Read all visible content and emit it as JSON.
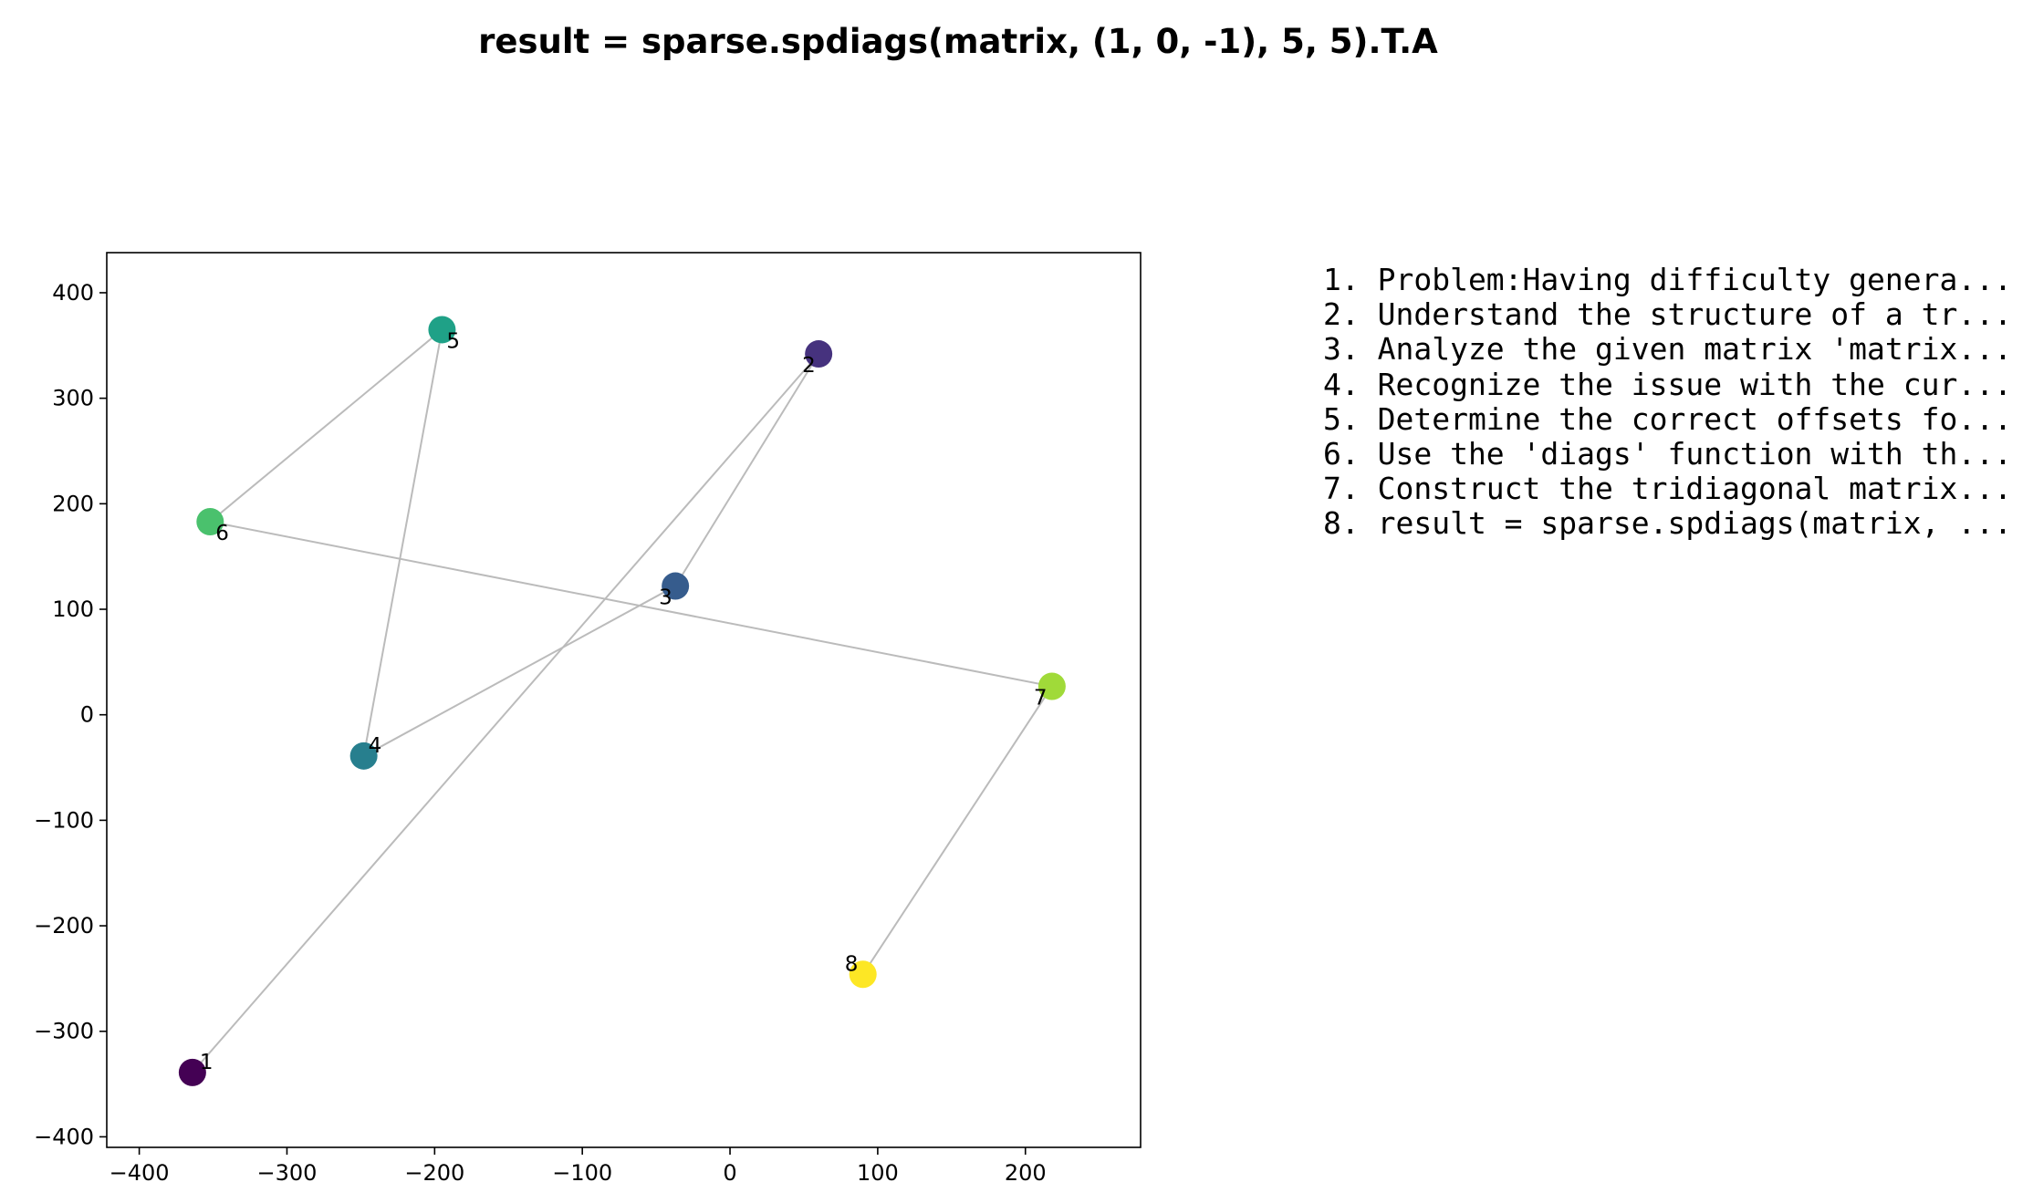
{
  "chart_data": {
    "type": "scatter",
    "title": "result = sparse.spdiags(matrix, (1, 0, -1), 5, 5).T.A",
    "xlabel": "",
    "ylabel": "",
    "xlim": [
      -422,
      278
    ],
    "ylim": [
      -410,
      438
    ],
    "xticks": [
      -400,
      -300,
      -200,
      -100,
      0,
      100,
      200
    ],
    "yticks": [
      -400,
      -300,
      -200,
      -100,
      0,
      100,
      200,
      300,
      400
    ],
    "xtick_labels": [
      "−400",
      "−300",
      "−200",
      "−100",
      "0",
      "100",
      "200"
    ],
    "ytick_labels": [
      "−400",
      "−300",
      "−200",
      "−100",
      "0",
      "100",
      "200",
      "300",
      "400"
    ],
    "grid": false,
    "points": [
      {
        "label": "1",
        "x": -364,
        "y": -339,
        "color": "#440154"
      },
      {
        "label": "2",
        "x": 60,
        "y": 342,
        "color": "#46327e"
      },
      {
        "label": "3",
        "x": -37,
        "y": 122,
        "color": "#365c8d"
      },
      {
        "label": "4",
        "x": -248,
        "y": -39,
        "color": "#277f8e"
      },
      {
        "label": "5",
        "x": -195,
        "y": 365,
        "color": "#1fa187"
      },
      {
        "label": "6",
        "x": -352,
        "y": 183,
        "color": "#4ac16d"
      },
      {
        "label": "7",
        "x": 218,
        "y": 27,
        "color": "#a0da39"
      },
      {
        "label": "8",
        "x": 90,
        "y": -246,
        "color": "#fde725"
      }
    ],
    "connector_color": "#bbbbbb",
    "steps": [
      "1. Problem:Having difficulty genera...",
      "2. Understand the structure of a tr...",
      "3. Analyze the given matrix 'matrix...",
      "4. Recognize the issue with the cur...",
      "5. Determine the correct offsets fo...",
      "6. Use the 'diags' function with th...",
      "7. Construct the tridiagonal matrix...",
      "8. result = sparse.spdiags(matrix, ..."
    ]
  }
}
